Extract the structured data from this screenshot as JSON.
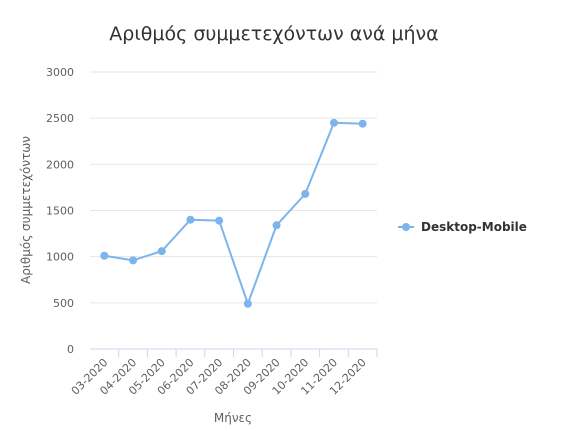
{
  "chart_data": {
    "type": "line",
    "title": "Αριθμός συμμετεχόντων ανά μήνα",
    "xlabel": "Μήνες",
    "ylabel": "Αριθμός συμμετεχόντων",
    "categories": [
      "03-2020",
      "04-2020",
      "05-2020",
      "06-2020",
      "07-2020",
      "08-2020",
      "09-2020",
      "10-2020",
      "11-2020",
      "12-2020"
    ],
    "series": [
      {
        "name": "Desktop-Mobile",
        "color": "#7cb5ec",
        "values": [
          1010,
          960,
          1060,
          1400,
          1390,
          490,
          1340,
          1680,
          2450,
          2440
        ]
      }
    ],
    "ylim": [
      0,
      3000
    ],
    "yticks": [
      0,
      500,
      1000,
      1500,
      2000,
      2500,
      3000
    ],
    "grid": true,
    "legend_position": "right"
  }
}
